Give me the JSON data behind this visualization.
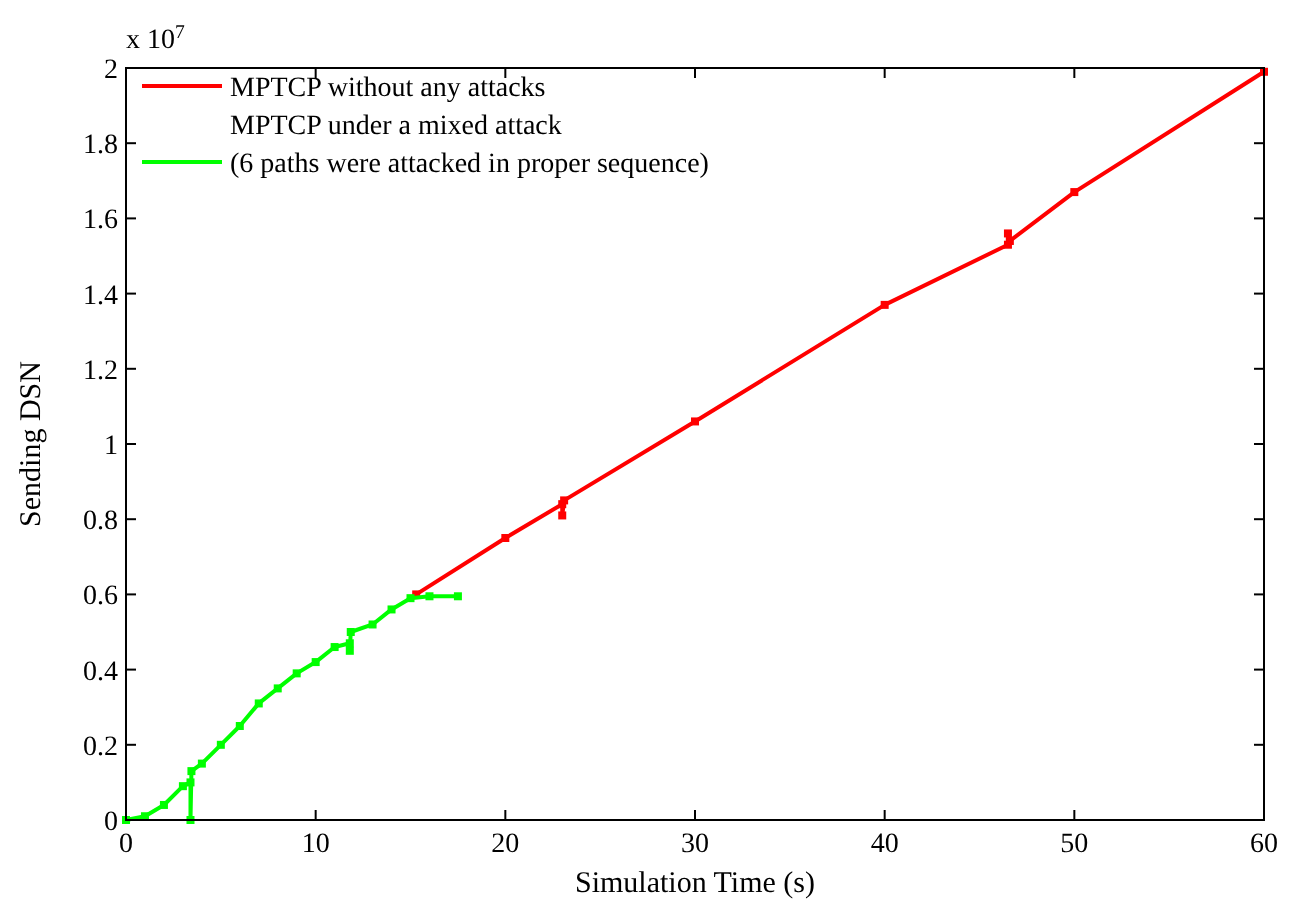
{
  "chart_data": {
    "type": "line",
    "xlabel": "Simulation Time (s)",
    "ylabel": "Sending DSN",
    "annotations": [
      "x 10$^{7}$"
    ],
    "xlim": [
      0,
      60
    ],
    "xticks": [
      0,
      10,
      20,
      30,
      40,
      50,
      60
    ],
    "ylim": [
      0,
      2
    ],
    "yticks": [
      0,
      0.2,
      0.4,
      0.6,
      0.8,
      1,
      1.2,
      1.4,
      1.6,
      1.8,
      2
    ],
    "legend": "top left",
    "marker": "square",
    "line_style": "solid",
    "grid": false,
    "series": [
      {
        "name": "MPTCP without any attacks",
        "color": "#ff0000",
        "x": [
          15.3,
          20,
          23,
          23,
          23.1,
          30,
          40,
          46.5,
          46.5,
          46.6,
          50,
          60
        ],
        "values": [
          0.6,
          0.75,
          0.84,
          0.81,
          0.85,
          1.06,
          1.37,
          1.53,
          1.56,
          1.54,
          1.67,
          1.99
        ]
      },
      {
        "name": "MPTCP under a mixed attack\n(6 paths were attacked in proper sequence)",
        "color": "#00ff00",
        "x": [
          0,
          1,
          2,
          3,
          3.4,
          3.4,
          3.45,
          4,
          5,
          6,
          7,
          8,
          9,
          10,
          11,
          11.8,
          11.8,
          11.85,
          13,
          14,
          15,
          16,
          17.5
        ],
        "values": [
          0,
          0.01,
          0.04,
          0.09,
          0.1,
          0,
          0.13,
          0.15,
          0.2,
          0.25,
          0.31,
          0.35,
          0.39,
          0.42,
          0.46,
          0.47,
          0.45,
          0.5,
          0.52,
          0.56,
          0.59,
          0.595,
          0.595
        ]
      }
    ]
  }
}
